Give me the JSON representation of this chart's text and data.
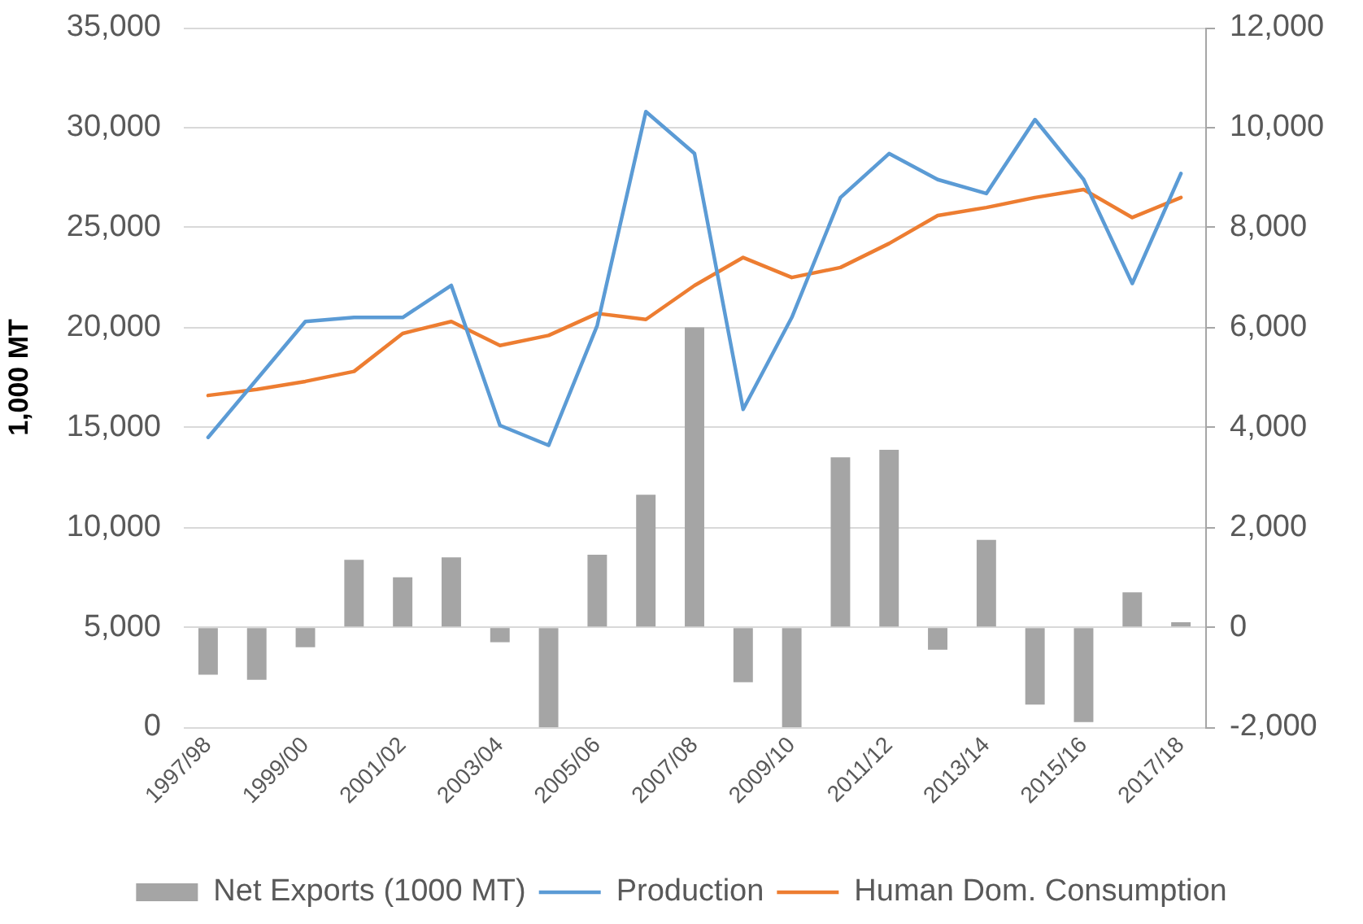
{
  "chart_data": {
    "type": "bar",
    "ylabel": "1,000 MT",
    "categories": [
      "1997/98",
      null,
      "1999/00",
      null,
      "2001/02",
      null,
      "2003/04",
      null,
      "2005/06",
      null,
      "2007/08",
      null,
      "2009/10",
      null,
      "2011/12",
      null,
      "2013/14",
      null,
      "2015/16",
      null,
      "2017/18"
    ],
    "series": [
      {
        "name": "Net Exports (1000 MT)",
        "axis": "y2",
        "color": "#a5a5a5",
        "values": [
          -950,
          -1050,
          -400,
          1350,
          1000,
          1400,
          -300,
          -2000,
          1450,
          2650,
          6000,
          -1100,
          -2000,
          3400,
          3550,
          -450,
          1750,
          -1550,
          -1900,
          700,
          100
        ]
      },
      {
        "name": "Production",
        "type": "line",
        "color": "#5b9bd5",
        "values": [
          14500,
          17400,
          20300,
          20500,
          20500,
          22100,
          15100,
          14100,
          20100,
          30800,
          28700,
          15900,
          20500,
          26500,
          28700,
          27400,
          26700,
          30400,
          27400,
          22200,
          27700
        ]
      },
      {
        "name": "Human Dom. Consumption",
        "type": "line",
        "color": "#ed7d31",
        "values": [
          16600,
          16900,
          17300,
          17800,
          19700,
          20300,
          19100,
          19600,
          20700,
          20400,
          22100,
          23500,
          22500,
          23000,
          24200,
          25600,
          26000,
          26500,
          26900,
          25500,
          26500
        ]
      }
    ],
    "ylim": [
      0,
      35000
    ],
    "yticks": [
      0,
      {
        "value": 5000,
        "label": "5,000"
      },
      {
        "value": 10000,
        "label": "10,000"
      },
      {
        "value": 15000,
        "label": "15,000"
      },
      {
        "value": 20000,
        "label": "20,000"
      },
      {
        "value": 25000,
        "label": "25,000"
      },
      {
        "value": 30000,
        "label": "30,000"
      },
      {
        "value": 35000,
        "label": "35,000"
      }
    ],
    "y2lim": [
      -2000,
      12000
    ],
    "y2ticks": [
      {
        "value": -2000,
        "label": "-2,000"
      },
      0,
      {
        "value": 2000,
        "label": "2,000"
      },
      {
        "value": 4000,
        "label": "4,000"
      },
      {
        "value": 6000,
        "label": "6,000"
      },
      {
        "value": 8000,
        "label": "8,000"
      },
      {
        "value": 10000,
        "label": "10,000"
      },
      {
        "value": 12000,
        "label": "12,000"
      }
    ],
    "grid": "y",
    "legend": "bottom",
    "marker": "none"
  }
}
